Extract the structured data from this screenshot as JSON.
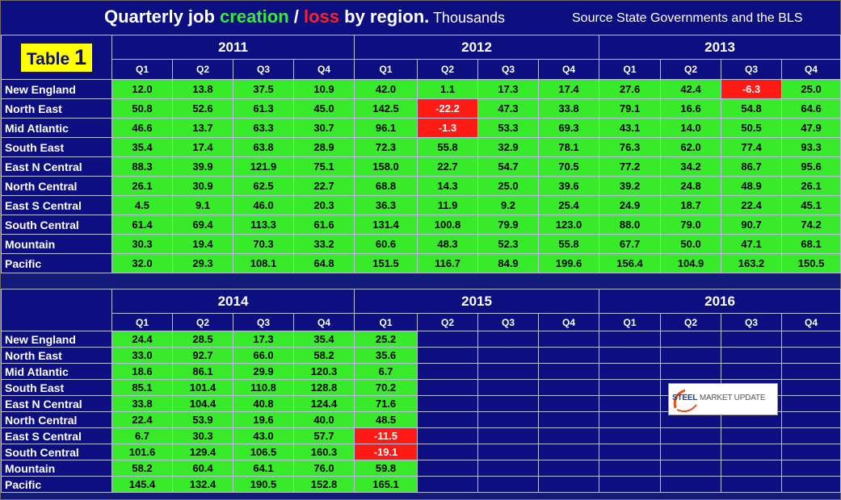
{
  "title": {
    "part1": "Quarterly job ",
    "creation": "creation",
    "sep": " / ",
    "loss": "loss",
    "part2": " by region.",
    "unit": " Thousands",
    "source": "Source State Governments and the BLS"
  },
  "badge": {
    "label": "Table",
    "number": "1"
  },
  "quarters": [
    "Q1",
    "Q2",
    "Q3",
    "Q4"
  ],
  "table_top": {
    "years": [
      "2011",
      "2012",
      "2013"
    ],
    "rows": [
      {
        "region": "New England",
        "values": [
          "12.0",
          "13.8",
          "37.5",
          "10.9",
          "42.0",
          "1.1",
          "17.3",
          "17.4",
          "27.6",
          "42.4",
          "-6.3",
          "25.0"
        ]
      },
      {
        "region": "North East",
        "values": [
          "50.8",
          "52.6",
          "61.3",
          "45.0",
          "142.5",
          "-22.2",
          "47.3",
          "33.8",
          "79.1",
          "16.6",
          "54.8",
          "64.6"
        ]
      },
      {
        "region": "Mid Atlantic",
        "values": [
          "46.6",
          "13.7",
          "63.3",
          "30.7",
          "96.1",
          "-1.3",
          "53.3",
          "69.3",
          "43.1",
          "14.0",
          "50.5",
          "47.9"
        ]
      },
      {
        "region": "South East",
        "values": [
          "35.4",
          "17.4",
          "63.8",
          "28.9",
          "72.3",
          "55.8",
          "32.9",
          "78.1",
          "76.3",
          "62.0",
          "77.4",
          "93.3"
        ]
      },
      {
        "region": "East N Central",
        "values": [
          "88.3",
          "39.9",
          "121.9",
          "75.1",
          "158.0",
          "22.7",
          "54.7",
          "70.5",
          "77.2",
          "34.2",
          "86.7",
          "95.6"
        ]
      },
      {
        "region": "North Central",
        "values": [
          "26.1",
          "30.9",
          "62.5",
          "22.7",
          "68.8",
          "14.3",
          "25.0",
          "39.6",
          "39.2",
          "24.8",
          "48.9",
          "26.1"
        ]
      },
      {
        "region": "East S Central",
        "values": [
          "4.5",
          "9.1",
          "46.0",
          "20.3",
          "36.3",
          "11.9",
          "9.2",
          "25.4",
          "24.9",
          "18.7",
          "22.4",
          "45.1"
        ]
      },
      {
        "region": "South Central",
        "values": [
          "61.4",
          "69.4",
          "113.3",
          "61.6",
          "131.4",
          "100.8",
          "79.9",
          "123.0",
          "88.0",
          "79.0",
          "90.7",
          "74.2"
        ]
      },
      {
        "region": "Mountain",
        "values": [
          "30.3",
          "19.4",
          "70.3",
          "33.2",
          "60.6",
          "48.3",
          "52.3",
          "55.8",
          "67.7",
          "50.0",
          "47.1",
          "68.1"
        ]
      },
      {
        "region": "Pacific",
        "values": [
          "32.0",
          "29.3",
          "108.1",
          "64.8",
          "151.5",
          "116.7",
          "84.9",
          "199.6",
          "156.4",
          "104.9",
          "163.2",
          "150.5"
        ]
      }
    ]
  },
  "table_bottom": {
    "years": [
      "2014",
      "2015",
      "2016"
    ],
    "rows": [
      {
        "region": "New England",
        "values": [
          "24.4",
          "28.5",
          "17.3",
          "35.4",
          "25.2",
          "",
          "",
          "",
          "",
          "",
          "",
          ""
        ]
      },
      {
        "region": "North East",
        "values": [
          "33.0",
          "92.7",
          "66.0",
          "58.2",
          "35.6",
          "",
          "",
          "",
          "",
          "",
          "",
          ""
        ]
      },
      {
        "region": "Mid Atlantic",
        "values": [
          "18.6",
          "86.1",
          "29.9",
          "120.3",
          "6.7",
          "",
          "",
          "",
          "",
          "",
          "",
          ""
        ]
      },
      {
        "region": "South East",
        "values": [
          "85.1",
          "101.4",
          "110.8",
          "128.8",
          "70.2",
          "",
          "",
          "",
          "",
          "",
          "",
          ""
        ]
      },
      {
        "region": "East N Central",
        "values": [
          "33.8",
          "104.4",
          "40.8",
          "124.4",
          "71.6",
          "",
          "",
          "",
          "",
          "",
          "",
          ""
        ]
      },
      {
        "region": "North Central",
        "values": [
          "22.4",
          "53.9",
          "19.6",
          "40.0",
          "48.5",
          "",
          "",
          "",
          "",
          "",
          "",
          ""
        ]
      },
      {
        "region": "East S Central",
        "values": [
          "6.7",
          "30.3",
          "43.0",
          "57.7",
          "-11.5",
          "",
          "",
          "",
          "",
          "",
          "",
          ""
        ]
      },
      {
        "region": "South Central",
        "values": [
          "101.6",
          "129.4",
          "106.5",
          "160.3",
          "-19.1",
          "",
          "",
          "",
          "",
          "",
          "",
          ""
        ]
      },
      {
        "region": "Mountain",
        "values": [
          "58.2",
          "60.4",
          "64.1",
          "76.0",
          "59.8",
          "",
          "",
          "",
          "",
          "",
          "",
          ""
        ]
      },
      {
        "region": "Pacific",
        "values": [
          "145.4",
          "132.4",
          "190.5",
          "152.8",
          "165.1",
          "",
          "",
          "",
          "",
          "",
          "",
          ""
        ]
      }
    ]
  },
  "logo": {
    "brand": "STEEL",
    "rest": " MARKET UPDATE"
  },
  "colors": {
    "background": "#0d0f80",
    "positive": "#37ea2a",
    "negative": "#ff1a14",
    "creation": "#38e83a",
    "loss": "#ff2020",
    "badge": "#ffff00"
  }
}
